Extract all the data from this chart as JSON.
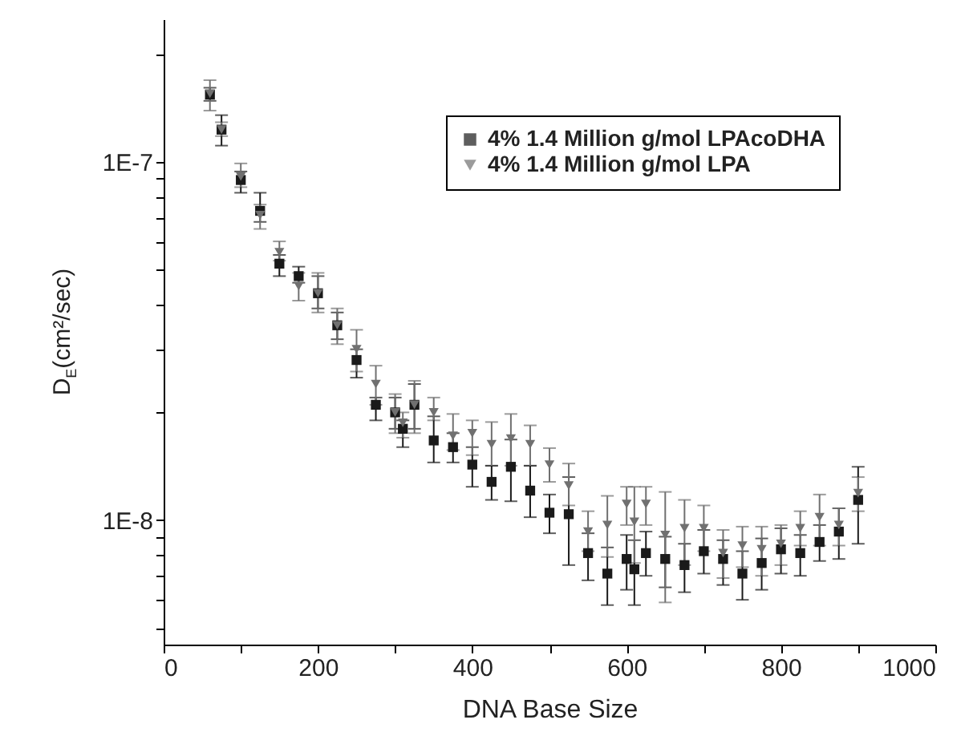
{
  "chart_data": {
    "type": "scatter",
    "xlabel": "DNA Base Size",
    "ylabel": "D$_{E}$(cm²/sec)",
    "log": "y",
    "grid": false,
    "legend": "top right",
    "x": [
      60,
      75,
      100,
      125,
      150,
      175,
      200,
      225,
      250,
      275,
      300,
      310,
      325,
      350,
      375,
      400,
      425,
      450,
      475,
      500,
      525,
      550,
      575,
      600,
      610,
      625,
      650,
      675,
      700,
      725,
      750,
      775,
      800,
      825,
      850,
      875,
      900
    ],
    "xlim": [
      0,
      1000
    ],
    "xticks": [
      0,
      {
        "value": 100,
        "label": null
      },
      200,
      {
        "value": 300,
        "label": null
      },
      400,
      {
        "value": 500,
        "label": null
      },
      600,
      {
        "value": 700,
        "label": null
      },
      800,
      {
        "value": 900,
        "label": null
      },
      1000
    ],
    "ylim": [
      4.5e-09,
      2.5e-07
    ],
    "yticks": [
      {
        "value": 5e-09,
        "label": null
      },
      {
        "value": 6e-09,
        "label": null
      },
      {
        "value": 7e-09,
        "label": null
      },
      {
        "value": 8e-09,
        "label": null
      },
      {
        "value": 9e-09,
        "label": null
      },
      {
        "value": 1e-08,
        "label": "1E-8"
      },
      {
        "value": 2e-08,
        "label": null
      },
      {
        "value": 3e-08,
        "label": null
      },
      {
        "value": 4e-08,
        "label": null
      },
      {
        "value": 5e-08,
        "label": null
      },
      {
        "value": 6e-08,
        "label": null
      },
      {
        "value": 7e-08,
        "label": null
      },
      {
        "value": 8e-08,
        "label": null
      },
      {
        "value": 9e-08,
        "label": null
      },
      {
        "value": 1e-07,
        "label": "1E-7"
      },
      {
        "value": 2e-07,
        "label": null
      }
    ],
    "series": [
      {
        "name": "4% 1.4 Million g/mol LPAcoDHA",
        "color": "#1a1a1a",
        "marker": "square",
        "values": [
          1.54e-07,
          1.23e-07,
          8.9e-08,
          7.3e-08,
          5.2e-08,
          4.8e-08,
          4.3e-08,
          3.5e-08,
          2.8e-08,
          2.1e-08,
          2e-08,
          1.8e-08,
          2.1e-08,
          1.67e-08,
          1.6e-08,
          1.43e-08,
          1.28e-08,
          1.41e-08,
          1.21e-08,
          1.05e-08,
          1.04e-08,
          8.1e-09,
          7.1e-09,
          7.8e-09,
          7.3e-09,
          8.1e-09,
          7.8e-09,
          7.5e-09,
          8.2e-09,
          7.8e-09,
          7.1e-09,
          7.6e-09,
          8.3e-09,
          8.1e-09,
          8.7e-09,
          9.3e-09,
          1.14e-08
        ],
        "errors": [
          [
            1.48e-07,
            1.61e-07
          ],
          [
            1.11e-07,
            1.35e-07
          ],
          [
            8.2e-08,
            9.4e-08
          ],
          [
            6.8e-08,
            8.2e-08
          ],
          [
            4.8e-08,
            5.5e-08
          ],
          [
            4.6e-08,
            5.1e-08
          ],
          [
            3.9e-08,
            4.8e-08
          ],
          [
            3.2e-08,
            3.8e-08
          ],
          [
            2.5e-08,
            3e-08
          ],
          [
            1.9e-08,
            2.2e-08
          ],
          [
            1.8e-08,
            2.2e-08
          ],
          [
            1.6e-08,
            1.9e-08
          ],
          [
            1.8e-08,
            2.4e-08
          ],
          [
            1.45e-08,
            1.95e-08
          ],
          [
            1.45e-08,
            1.75e-08
          ],
          [
            1.24e-08,
            1.6e-08
          ],
          [
            1.14e-08,
            1.42e-08
          ],
          [
            1.13e-08,
            1.68e-08
          ],
          [
            1.02e-08,
            1.42e-08
          ],
          [
            9.2e-09,
            1.18e-08
          ],
          [
            7.5e-09,
            1.32e-08
          ],
          [
            6.8e-09,
            9.2e-09
          ],
          [
            5.8e-09,
            8.4e-09
          ],
          [
            6.4e-09,
            9.1e-09
          ],
          [
            5.8e-09,
            8.8e-09
          ],
          [
            7e-09,
            9.3e-09
          ],
          [
            6.5e-09,
            9e-09
          ],
          [
            6.3e-09,
            8.6e-09
          ],
          [
            7.1e-09,
            9.4e-09
          ],
          [
            6.6e-09,
            8.8e-09
          ],
          [
            6e-09,
            8.2e-09
          ],
          [
            6.4e-09,
            8.9e-09
          ],
          [
            7.1e-09,
            9.5e-09
          ],
          [
            7e-09,
            9.1e-09
          ],
          [
            7.7e-09,
            9.7e-09
          ],
          [
            7.8e-09,
            1.08e-08
          ],
          [
            8.6e-09,
            1.41e-08
          ]
        ]
      },
      {
        "name": "4% 1.4 Million g/mol LPA",
        "color": "#707070",
        "marker": "triangle-down",
        "values": [
          1.55e-07,
          1.23e-07,
          9.1e-08,
          7.1e-08,
          5.6e-08,
          4.5e-08,
          4.3e-08,
          3.5e-08,
          3e-08,
          2.4e-08,
          2e-08,
          1.87e-08,
          2.1e-08,
          2e-08,
          1.72e-08,
          1.75e-08,
          1.63e-08,
          1.69e-08,
          1.63e-08,
          1.43e-08,
          1.25e-08,
          9.3e-09,
          9.7e-09,
          1.11e-08,
          9.9e-09,
          1.11e-08,
          9.1e-09,
          9.5e-09,
          9.5e-09,
          8.1e-09,
          8.5e-09,
          8.3e-09,
          8.6e-09,
          9.5e-09,
          1.02e-08,
          9.7e-09,
          1.19e-08
        ],
        "errors": [
          [
            1.39e-07,
            1.69e-07
          ],
          [
            1.18e-07,
            1.29e-07
          ],
          [
            8.5e-08,
            9.9e-08
          ],
          [
            6.5e-08,
            7.6e-08
          ],
          [
            5.3e-08,
            6e-08
          ],
          [
            4.1e-08,
            4.9e-08
          ],
          [
            3.8e-08,
            4.9e-08
          ],
          [
            3.1e-08,
            3.9e-08
          ],
          [
            2.6e-08,
            3.4e-08
          ],
          [
            2.1e-08,
            2.7e-08
          ],
          [
            1.75e-08,
            2.25e-08
          ],
          [
            1.7e-08,
            2e-08
          ],
          [
            1.75e-08,
            2.45e-08
          ],
          [
            1.9e-08,
            2.2e-08
          ],
          [
            1.57e-08,
            1.98e-08
          ],
          [
            1.52e-08,
            1.9e-08
          ],
          [
            1.42e-08,
            1.88e-08
          ],
          [
            1.42e-08,
            1.98e-08
          ],
          [
            1.42e-08,
            1.84e-08
          ],
          [
            1.28e-08,
            1.59e-08
          ],
          [
            1.1e-08,
            1.44e-08
          ],
          [
            8.2e-09,
            1.06e-08
          ],
          [
            7.9e-09,
            1.17e-08
          ],
          [
            9.7e-09,
            1.24e-08
          ],
          [
            7.6e-09,
            1.24e-08
          ],
          [
            9.7e-09,
            1.24e-08
          ],
          [
            5.9e-09,
            1.2e-08
          ],
          [
            7.5e-09,
            1.14e-08
          ],
          [
            8.2e-09,
            1.1e-08
          ],
          [
            6.9e-09,
            9.4e-09
          ],
          [
            7.4e-09,
            9.6e-09
          ],
          [
            7e-09,
            9.6e-09
          ],
          [
            7.5e-09,
            9.7e-09
          ],
          [
            8.5e-09,
            1.06e-08
          ],
          [
            8.5e-09,
            1.18e-08
          ],
          [
            8.5e-09,
            1.08e-08
          ],
          [
            1.06e-08,
            1.32e-08
          ]
        ]
      }
    ]
  }
}
